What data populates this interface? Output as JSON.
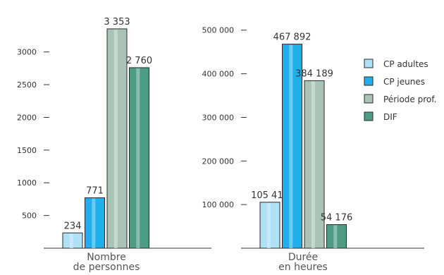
{
  "chart_data": [
    {
      "type": "bar",
      "category_label": [
        "Nombre",
        "de personnes"
      ],
      "ylim": [
        0,
        3600
      ],
      "yticks": [
        500,
        1000,
        1500,
        2000,
        2500,
        3000
      ],
      "ytick_labels": [
        "500",
        "1000",
        "1500",
        "2000",
        "2500",
        "3000"
      ],
      "series": [
        {
          "name": "CP adultes",
          "value": 234,
          "label": "234"
        },
        {
          "name": "CP jeunes",
          "value": 771,
          "label": "771"
        },
        {
          "name": "Période prof.",
          "value": 3353,
          "label": "3 353"
        },
        {
          "name": "DIF",
          "value": 2760,
          "label": "2 760"
        }
      ]
    },
    {
      "type": "bar",
      "category_label": [
        "Durée",
        "en heures"
      ],
      "ylim": [
        0,
        540000
      ],
      "yticks": [
        100000,
        200000,
        300000,
        400000,
        500000
      ],
      "ytick_labels": [
        "100 000",
        "200 000",
        "300 000",
        "400 000",
        "500 000"
      ],
      "series": [
        {
          "name": "CP adultes",
          "value": 105410,
          "label": "105 410"
        },
        {
          "name": "CP jeunes",
          "value": 467892,
          "label": "467 892"
        },
        {
          "name": "Période prof.",
          "value": 384189,
          "label": "384 189"
        },
        {
          "name": "DIF",
          "value": 54176,
          "label": "54 176"
        }
      ]
    }
  ],
  "legend": {
    "placement": "right",
    "items": [
      {
        "label": "CP adultes",
        "color": "#aee0f6"
      },
      {
        "label": "CP jeunes",
        "color": "#1fb0ec"
      },
      {
        "label": "Période prof.",
        "color": "#a9c4b6"
      },
      {
        "label": "DIF",
        "color": "#4e9b84"
      }
    ]
  },
  "colors": {
    "cp_adultes": "#aee0f6",
    "cp_jeunes": "#1fb0ec",
    "periode_prof": "#a9c4b6",
    "dif": "#4e9b84",
    "outline": "#2a2a2a"
  }
}
